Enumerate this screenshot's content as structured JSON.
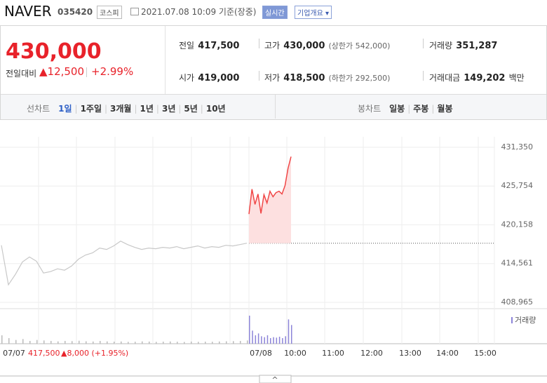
{
  "header": {
    "name": "NAVER",
    "code": "035420",
    "market": "코스피",
    "timestamp": "2021.07.08 10:09 기준(장중)",
    "realtime_button": "실시간",
    "company_button": "기업개요"
  },
  "quote": {
    "price": "430,000",
    "change_label": "전일대비",
    "change": "▲12,500",
    "change_pct": "+2.99%",
    "prev_close_label": "전일",
    "prev_close": "417,500",
    "high_label": "고가",
    "high": "430,000",
    "upper_limit": "(상한가 542,000)",
    "volume_label": "거래량",
    "volume": "351,287",
    "open_label": "시가",
    "open": "419,000",
    "low_label": "저가",
    "low": "418,500",
    "lower_limit": "(하한가 292,500)",
    "value_label": "거래대금",
    "value": "149,202",
    "value_unit": "백만"
  },
  "tabs": {
    "line_chart": "선차트",
    "line_periods": [
      "1일",
      "1주일",
      "3개월",
      "1년",
      "3년",
      "5년",
      "10년"
    ],
    "candle_chart": "봉차트",
    "candle_periods": [
      "일봉",
      "주봉",
      "월봉"
    ]
  },
  "chart_data": {
    "type": "line",
    "ylim": [
      408050,
      432560
    ],
    "yticks": [
      {
        "value": 431350,
        "label": "431,350"
      },
      {
        "value": 425754,
        "label": "425,754"
      },
      {
        "value": 420158,
        "label": "420,158"
      },
      {
        "value": 414561,
        "label": "414,561"
      },
      {
        "value": 408965,
        "label": "408,965"
      }
    ],
    "grid": true,
    "baseline": 417500,
    "series": [
      {
        "color": "#c8c8c8",
        "values": [
          417200,
          411500,
          413000,
          414800,
          415500,
          414900,
          413200,
          413400,
          413800,
          413600,
          414200,
          415200,
          415800,
          416100,
          416800,
          416600,
          417100,
          417800,
          417300,
          416900,
          416600,
          416800,
          416700,
          416900,
          416800,
          417000,
          416700,
          416900,
          417100,
          416800,
          417000,
          416900,
          417200,
          417100,
          417300,
          417500
        ]
      },
      {
        "color": "#f04646",
        "values": [
          421700,
          425300,
          423100,
          424600,
          421800,
          424500,
          423300,
          425000,
          424200,
          424800,
          425000,
          424600,
          425800,
          428300,
          430000
        ]
      }
    ],
    "volume": {
      "name": "거래량",
      "prev_color": "#bbbbbb",
      "today_color": "#8c84d8",
      "prev_values": [
        9000,
        6000,
        4000,
        5000,
        3000,
        4000,
        3500,
        3000,
        2500,
        3000,
        2800,
        3200,
        2600,
        2400,
        3000,
        2500,
        2200,
        2400,
        2000,
        2100,
        2500,
        2300,
        2000,
        2200,
        2400,
        2100,
        1900,
        2300,
        2000,
        2200,
        2100,
        2400,
        2600,
        2800,
        3000,
        3500
      ],
      "today_values": [
        30000,
        14000,
        9000,
        11000,
        8000,
        7000,
        9000,
        6000,
        7000,
        6500,
        7500,
        6000,
        8000,
        26000,
        20000
      ]
    },
    "x_labels": [
      "07/07",
      "07/08",
      "10:00",
      "11:00",
      "12:00",
      "13:00",
      "14:00",
      "15:00"
    ],
    "prev_day_note": {
      "close": "417,500",
      "change": "▲8,000 (+1.95%)"
    }
  }
}
